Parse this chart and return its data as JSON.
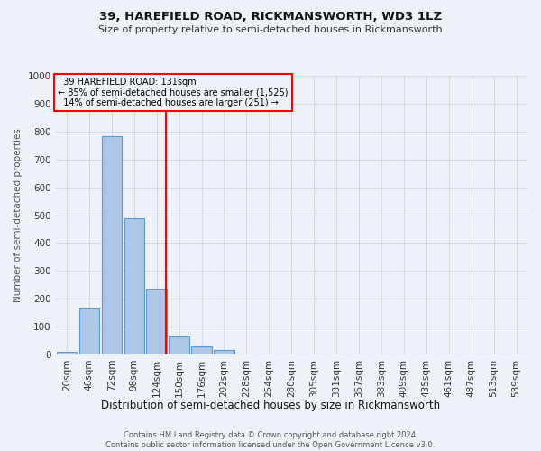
{
  "title1": "39, HAREFIELD ROAD, RICKMANSWORTH, WD3 1LZ",
  "title2": "Size of property relative to semi-detached houses in Rickmansworth",
  "xlabel": "Distribution of semi-detached houses by size in Rickmansworth",
  "ylabel": "Number of semi-detached properties",
  "bar_labels": [
    "20sqm",
    "46sqm",
    "72sqm",
    "98sqm",
    "124sqm",
    "150sqm",
    "176sqm",
    "202sqm",
    "228sqm",
    "254sqm",
    "280sqm",
    "305sqm",
    "331sqm",
    "357sqm",
    "383sqm",
    "409sqm",
    "435sqm",
    "461sqm",
    "487sqm",
    "513sqm",
    "539sqm"
  ],
  "bar_values": [
    10,
    165,
    783,
    490,
    235,
    65,
    30,
    15,
    0,
    0,
    0,
    0,
    0,
    0,
    0,
    0,
    0,
    0,
    0,
    0,
    0
  ],
  "property_label": "39 HAREFIELD ROAD: 131sqm",
  "pct_smaller": 85,
  "n_smaller": 1525,
  "pct_larger": 14,
  "n_larger": 251,
  "vline_x": 4.42,
  "bar_color": "#aec6e8",
  "bar_edge_color": "#5b9bd5",
  "vline_color": "red",
  "annotation_box_color": "red",
  "grid_color": "#d0d8e8",
  "bg_color": "#eef2f8",
  "footer": "Contains HM Land Registry data © Crown copyright and database right 2024.\nContains public sector information licensed under the Open Government Licence v3.0.",
  "ylim": [
    0,
    1000
  ],
  "yticks": [
    0,
    100,
    200,
    300,
    400,
    500,
    600,
    700,
    800,
    900,
    1000
  ]
}
